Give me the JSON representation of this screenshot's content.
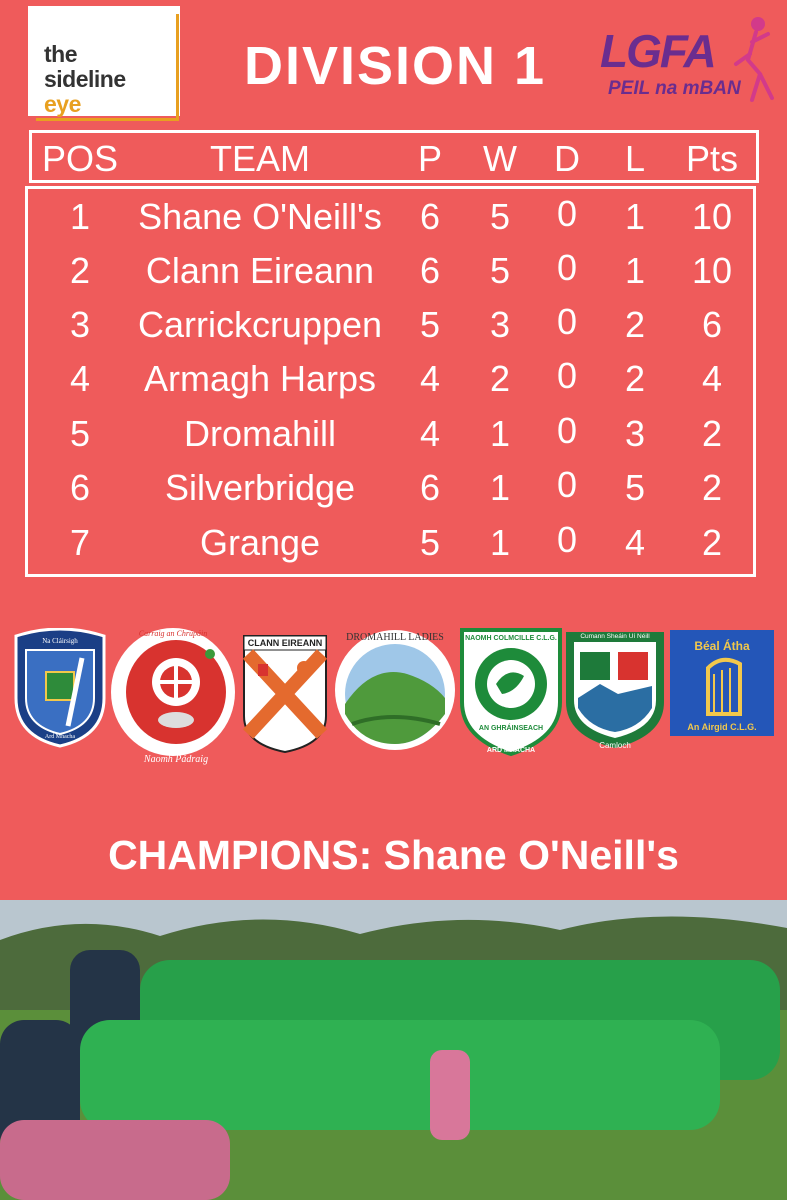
{
  "brand": {
    "line1": "the",
    "line2": "sideline",
    "line3": "eye"
  },
  "title": "DIVISION 1",
  "lgfa": {
    "name": "LGFA",
    "tagline": "PEIL na mBAN"
  },
  "table": {
    "headers": {
      "pos": "POS",
      "team": "TEAM",
      "p": "P",
      "w": "W",
      "d": "D",
      "l": "L",
      "pts": "Pts"
    },
    "rows": [
      {
        "pos": "1",
        "team": "Shane O'Neill's",
        "p": "6",
        "w": "5",
        "d": "0",
        "l": "1",
        "pts": "10"
      },
      {
        "pos": "2",
        "team": "Clann Eireann",
        "p": "6",
        "w": "5",
        "d": "0",
        "l": "1",
        "pts": "10"
      },
      {
        "pos": "3",
        "team": "Carrickcruppen",
        "p": "5",
        "w": "3",
        "d": "0",
        "l": "2",
        "pts": "6"
      },
      {
        "pos": "4",
        "team": "Armagh Harps",
        "p": "4",
        "w": "2",
        "d": "0",
        "l": "2",
        "pts": "4"
      },
      {
        "pos": "5",
        "team": "Dromahill",
        "p": "4",
        "w": "1",
        "d": "0",
        "l": "3",
        "pts": "2"
      },
      {
        "pos": "6",
        "team": "Silverbridge",
        "p": "6",
        "w": "1",
        "d": "0",
        "l": "5",
        "pts": "2"
      },
      {
        "pos": "7",
        "team": "Grange",
        "p": "5",
        "w": "1",
        "d": "0",
        "l": "4",
        "pts": "2"
      }
    ]
  },
  "crests": {
    "harps_top": "Na Cláirsigh",
    "harps_bottom": "Ard Mhacha",
    "carrick_top": "Carraig an Chrúpáin",
    "carrick_bottom": "Naomh Pádraig",
    "clann": "CLANN EIREANN",
    "dromahill": "DROMAHILL LADIES",
    "grange_top": "NAOMH COLMCILLE C.L.G.",
    "grange_mid": "AN GHRÁINSEACH",
    "grange_bottom": "ARD MHACHA",
    "shanes_top": "Cumann Sheáin Uí Néill",
    "shanes_bottom": "Camloch",
    "silver_top": "Béal Átha",
    "silver_bottom": "An Airgid C.L.G."
  },
  "champions": "CHAMPIONS: Shane O'Neill's",
  "colors": {
    "background": "#ef5b5b",
    "text": "#ffffff",
    "lgfa": "#6a2d8f",
    "accent": "#e8a020"
  }
}
